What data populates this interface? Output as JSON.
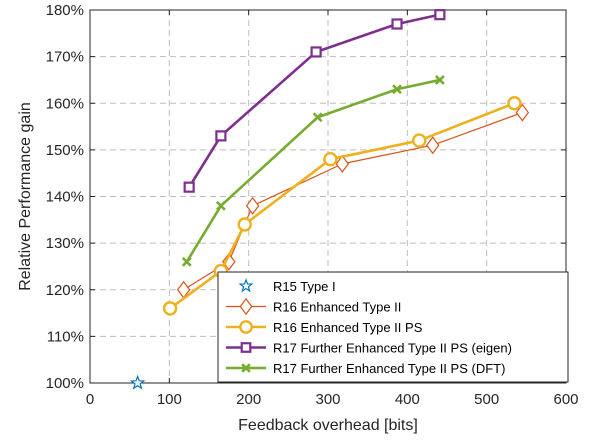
{
  "chart_data": {
    "type": "line",
    "xlabel": "Feedback overhead [bits]",
    "ylabel": "Relative Performance gain",
    "xlim": [
      0,
      600
    ],
    "ylim": [
      100,
      180
    ],
    "xticks": [
      0,
      100,
      200,
      300,
      400,
      500,
      600
    ],
    "yticks": [
      100,
      110,
      120,
      130,
      140,
      150,
      160,
      170,
      180
    ],
    "xtick_labels": [
      "0",
      "100",
      "200",
      "300",
      "400",
      "500",
      "600"
    ],
    "ytick_labels": [
      "100%",
      "110%",
      "120%",
      "130%",
      "140%",
      "150%",
      "160%",
      "170%",
      "180%"
    ],
    "grid": true,
    "legend_position": "bottom-right",
    "series": [
      {
        "name": "R15 Type I",
        "color": "#0072BD",
        "marker": "star",
        "line": false,
        "x": [
          60
        ],
        "y": [
          100
        ]
      },
      {
        "name": "R16 Enhanced Type II",
        "color": "#D95319",
        "marker": "diamond",
        "line": true,
        "x": [
          118,
          175,
          205,
          318,
          432,
          545
        ],
        "y": [
          120,
          126,
          138,
          147,
          151,
          158
        ]
      },
      {
        "name": "R16 Enhanced Type II PS",
        "color": "#EDB120",
        "marker": "circle",
        "line": true,
        "x": [
          101,
          165,
          195,
          303,
          415,
          535
        ],
        "y": [
          116,
          124,
          134,
          148,
          152,
          160
        ]
      },
      {
        "name": "R17 Further Enhanced Type II PS (eigen)",
        "color": "#7E2F8E",
        "marker": "square",
        "line": true,
        "x": [
          125,
          165,
          285,
          387,
          441
        ],
        "y": [
          142,
          153,
          171,
          177,
          179
        ]
      },
      {
        "name": "R17 Further Enhanced Type II PS (DFT)",
        "color": "#77AC30",
        "marker": "x",
        "line": true,
        "x": [
          122,
          165,
          287,
          387,
          441
        ],
        "y": [
          126,
          138,
          157,
          163,
          165
        ]
      }
    ]
  }
}
